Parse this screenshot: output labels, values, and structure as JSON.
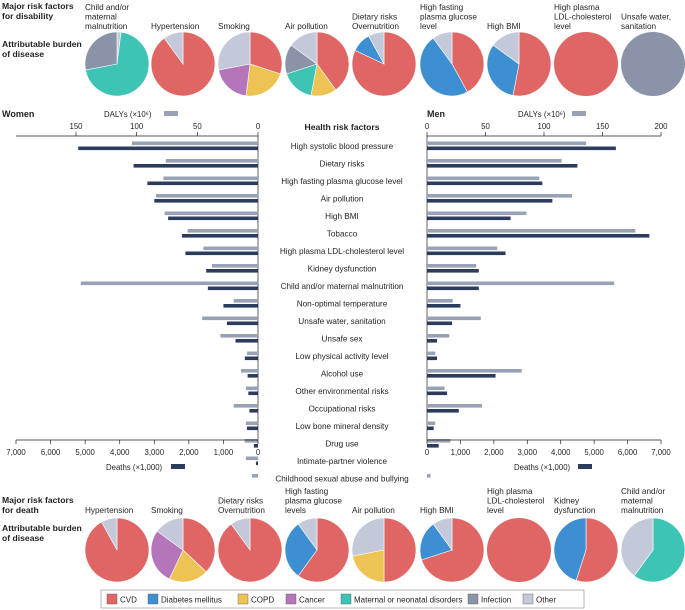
{
  "colors": {
    "cvd": "#e06666",
    "diabetes": "#3d8fd1",
    "copd": "#edc453",
    "cancer": "#b575bb",
    "maternal": "#3ec4b5",
    "infection": "#8a93a8",
    "other": "#c3c9d9",
    "daly_bar": "#98a1b6",
    "death_bar": "#2d3c5c",
    "axis": "#231f20"
  },
  "disability": {
    "title": [
      "Major risk factors",
      "for disability"
    ],
    "burden_label": [
      "Attributable burden",
      "of disease"
    ],
    "pies": [
      {
        "label": [
          "Child and/or",
          "maternal",
          "malnutrition"
        ],
        "slices": [
          {
            "cat": "other",
            "pct": 2
          },
          {
            "cat": "maternal",
            "pct": 70
          },
          {
            "cat": "infection",
            "pct": 28
          }
        ]
      },
      {
        "label": [
          "Hypertension"
        ],
        "slices": [
          {
            "cat": "cvd",
            "pct": 90
          },
          {
            "cat": "other",
            "pct": 10
          }
        ]
      },
      {
        "label": [
          "Smoking"
        ],
        "slices": [
          {
            "cat": "cvd",
            "pct": 30
          },
          {
            "cat": "copd",
            "pct": 22
          },
          {
            "cat": "cancer",
            "pct": 20
          },
          {
            "cat": "other",
            "pct": 28
          }
        ]
      },
      {
        "label": [
          "Air pollution"
        ],
        "slices": [
          {
            "cat": "cvd",
            "pct": 40
          },
          {
            "cat": "copd",
            "pct": 13
          },
          {
            "cat": "maternal",
            "pct": 17
          },
          {
            "cat": "infection",
            "pct": 15
          },
          {
            "cat": "other",
            "pct": 15
          }
        ]
      },
      {
        "label": [
          "Dietary risks",
          "Overnutrition"
        ],
        "slices": [
          {
            "cat": "cvd",
            "pct": 82
          },
          {
            "cat": "diabetes",
            "pct": 10
          },
          {
            "cat": "other",
            "pct": 8
          }
        ]
      },
      {
        "label": [
          "High fasting",
          "plasma glucose",
          "level"
        ],
        "slices": [
          {
            "cat": "cvd",
            "pct": 42
          },
          {
            "cat": "diabetes",
            "pct": 48
          },
          {
            "cat": "other",
            "pct": 10
          }
        ]
      },
      {
        "label": [
          "High BMI"
        ],
        "slices": [
          {
            "cat": "cvd",
            "pct": 53
          },
          {
            "cat": "diabetes",
            "pct": 32
          },
          {
            "cat": "other",
            "pct": 15
          }
        ]
      },
      {
        "label": [
          "High plasma",
          "LDL-cholesterol",
          "level"
        ],
        "slices": [
          {
            "cat": "cvd",
            "pct": 100
          }
        ]
      },
      {
        "label": [
          "Unsafe water,",
          "sanitation"
        ],
        "slices": [
          {
            "cat": "infection",
            "pct": 100
          }
        ]
      }
    ]
  },
  "death": {
    "title": [
      "Major risk factors",
      "for death"
    ],
    "burden_label": [
      "Attributable burden",
      "of disease"
    ],
    "pies": [
      {
        "label": [
          "Hypertension"
        ],
        "slices": [
          {
            "cat": "cvd",
            "pct": 92
          },
          {
            "cat": "other",
            "pct": 8
          }
        ]
      },
      {
        "label": [
          "Smoking"
        ],
        "slices": [
          {
            "cat": "cvd",
            "pct": 37
          },
          {
            "cat": "copd",
            "pct": 20
          },
          {
            "cat": "cancer",
            "pct": 28
          },
          {
            "cat": "other",
            "pct": 15
          }
        ]
      },
      {
        "label": [
          "Dietary risks",
          "Overnutrition"
        ],
        "slices": [
          {
            "cat": "cvd",
            "pct": 90
          },
          {
            "cat": "other",
            "pct": 10
          }
        ]
      },
      {
        "label": [
          "High fasting",
          "plasma glucose",
          "levels"
        ],
        "slices": [
          {
            "cat": "cvd",
            "pct": 60
          },
          {
            "cat": "diabetes",
            "pct": 30
          },
          {
            "cat": "other",
            "pct": 10
          }
        ]
      },
      {
        "label": [
          "Air pollution"
        ],
        "slices": [
          {
            "cat": "cvd",
            "pct": 50
          },
          {
            "cat": "copd",
            "pct": 22
          },
          {
            "cat": "other",
            "pct": 28
          }
        ]
      },
      {
        "label": [
          "High BMI"
        ],
        "slices": [
          {
            "cat": "cvd",
            "pct": 70
          },
          {
            "cat": "diabetes",
            "pct": 20
          },
          {
            "cat": "other",
            "pct": 10
          }
        ]
      },
      {
        "label": [
          "High plasma",
          "LDL-cholesterol",
          "level"
        ],
        "slices": [
          {
            "cat": "cvd",
            "pct": 100
          }
        ]
      },
      {
        "label": [
          "Kidney",
          "dysfunction"
        ],
        "slices": [
          {
            "cat": "cvd",
            "pct": 55
          },
          {
            "cat": "diabetes",
            "pct": 45
          }
        ]
      },
      {
        "label": [
          "Child and/or",
          "maternal",
          "malnutrition"
        ],
        "slices": [
          {
            "cat": "maternal",
            "pct": 60
          },
          {
            "cat": "other",
            "pct": 40
          }
        ]
      }
    ]
  },
  "chart_data": {
    "type": "bar",
    "title": "Health risk factors",
    "women_label": "Women",
    "men_label": "Men",
    "daly_label": "DALYs (×10⁶)",
    "deaths_label": "Deaths (×1,000)",
    "daly_range": [
      0,
      200
    ],
    "daly_ticks_women": [
      "150",
      "100",
      "50",
      "0"
    ],
    "daly_ticks_men": [
      "0",
      "50",
      "100",
      "150",
      "200"
    ],
    "deaths_range": [
      0,
      7000
    ],
    "deaths_ticks_women": [
      "7,000",
      "6,000",
      "5,000",
      "4,000",
      "3,000",
      "2,000",
      "1,000",
      "0"
    ],
    "deaths_ticks_men": [
      "0",
      "1,000",
      "2,000",
      "3,000",
      "4,000",
      "5,000",
      "6,000",
      "7,000"
    ],
    "categories": [
      "High systolic blood pressure",
      "Dietary risks",
      "High fasting plasma glucose level",
      "Air pollution",
      "High BMI",
      "Tobacco",
      "High plasma LDL-cholesterol level",
      "Kidney dysfunction",
      "Child and/or maternal malnutrition",
      "Non-optimal temperature",
      "Unsafe water, sanitation",
      "Unsafe sex",
      "Low physical activity level",
      "Alcohol use",
      "Other environmental risks",
      "Occupational risks",
      "Low bone mineral density",
      "Drug use",
      "Intimate-partner violence",
      "Childhood sexual abuse and bullying"
    ],
    "series": [
      {
        "name": "Women DALYs",
        "values": [
          104,
          76,
          78,
          84,
          77,
          58,
          45,
          38,
          146,
          20,
          46,
          31,
          9,
          14,
          10,
          20,
          10,
          11,
          10,
          5
        ]
      },
      {
        "name": "Women deaths",
        "values": [
          5200,
          3600,
          3200,
          3000,
          2600,
          2200,
          2100,
          1500,
          1450,
          1000,
          900,
          650,
          380,
          300,
          280,
          250,
          320,
          120,
          60,
          0
        ]
      },
      {
        "name": "Men DALYs",
        "values": [
          136,
          115,
          96,
          124,
          85,
          178,
          60,
          42,
          160,
          22,
          46,
          19,
          7,
          81,
          15,
          47,
          7,
          20,
          0,
          3
        ]
      },
      {
        "name": "Men deaths",
        "values": [
          5650,
          4500,
          3450,
          3750,
          2500,
          6650,
          2350,
          1550,
          1550,
          1000,
          750,
          300,
          300,
          2050,
          600,
          950,
          200,
          350,
          0,
          0
        ]
      }
    ]
  },
  "legend": [
    {
      "cat": "cvd",
      "label": "CVD"
    },
    {
      "cat": "diabetes",
      "label": "Diabetes mellitus"
    },
    {
      "cat": "copd",
      "label": "COPD"
    },
    {
      "cat": "cancer",
      "label": "Cancer"
    },
    {
      "cat": "maternal",
      "label": "Maternal or neonatal disorders"
    },
    {
      "cat": "infection",
      "label": "Infection"
    },
    {
      "cat": "other",
      "label": "Other"
    }
  ]
}
